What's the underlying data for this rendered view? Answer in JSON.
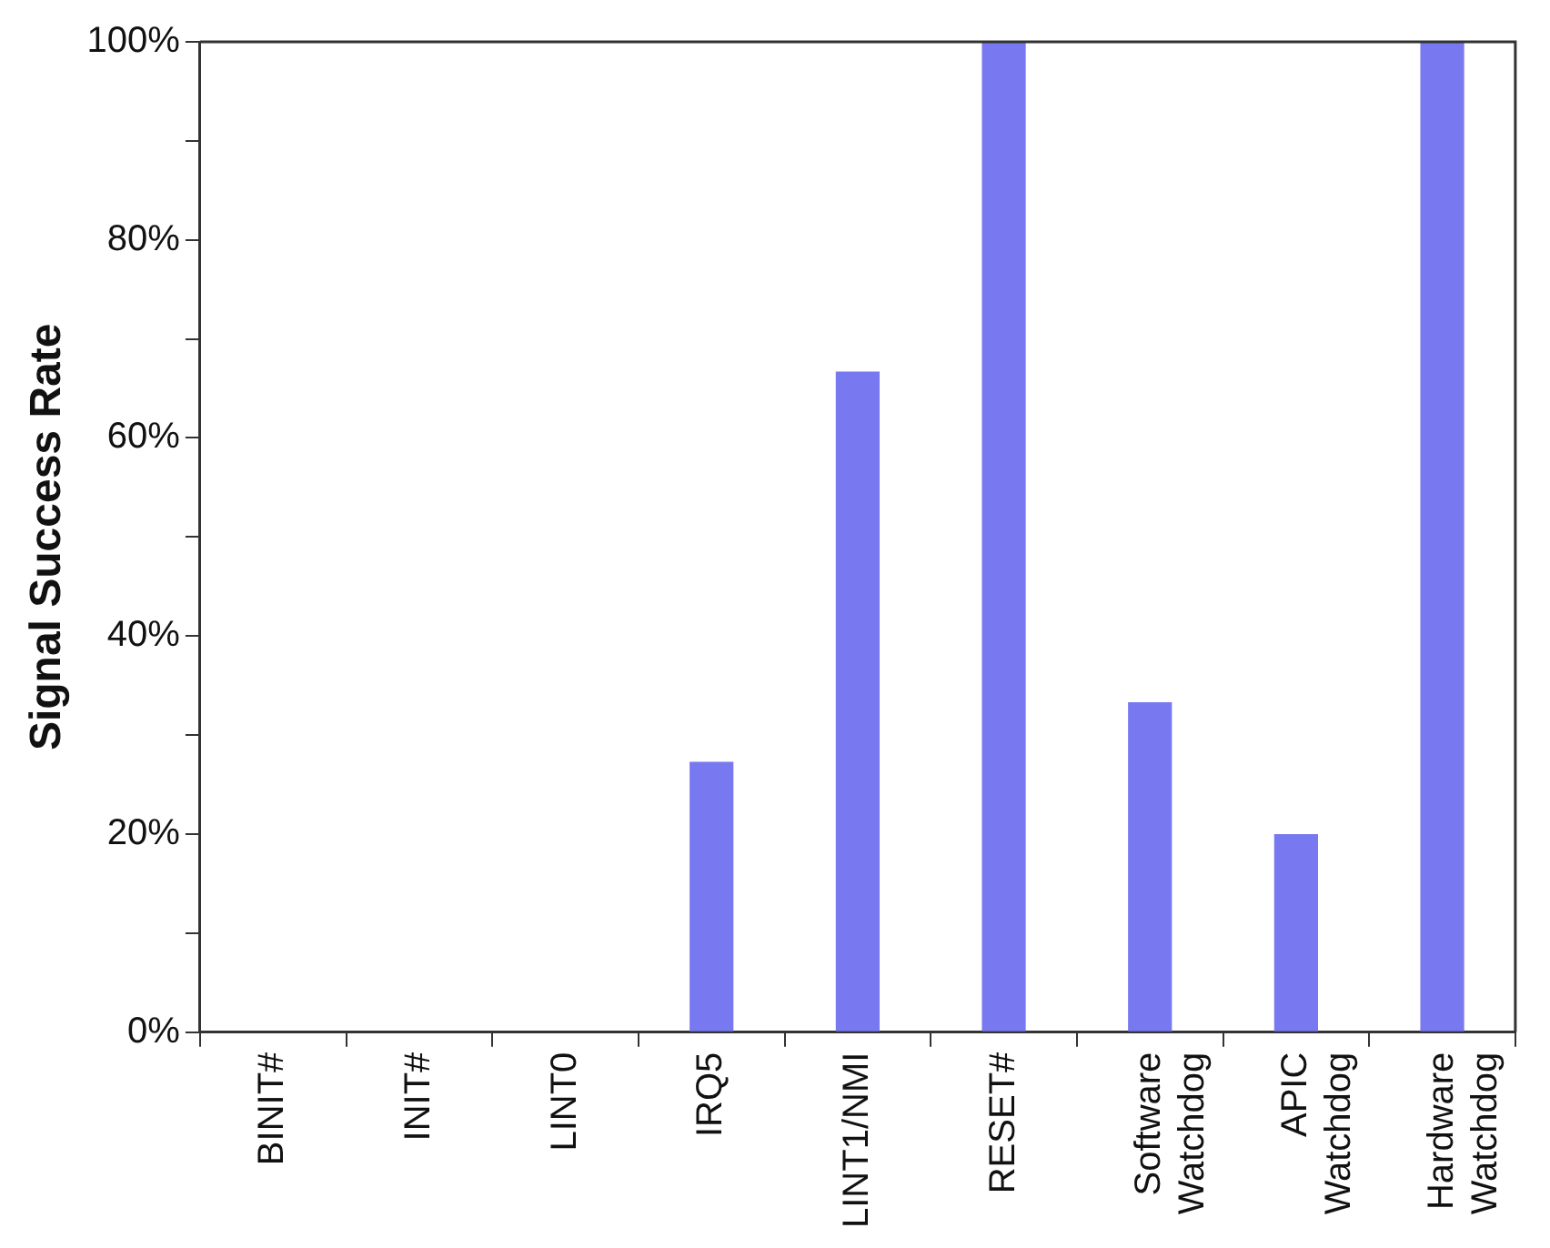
{
  "chart_data": {
    "type": "bar",
    "ylabel": "Signal Success Rate",
    "categories": [
      "BINIT#",
      "INIT#",
      "LINT0",
      "IRQ5",
      "LINT1/NMI",
      "RESET#",
      "Software Watchdog",
      "APIC Watchdog",
      "Hardware Watchdog"
    ],
    "values": [
      0,
      0,
      0,
      27.3,
      66.7,
      100,
      33.3,
      20,
      100
    ],
    "color": "#7878f0",
    "ylim": [
      0,
      100
    ],
    "yticks": [
      {
        "value": 0,
        "label": "0%"
      },
      {
        "value": 10,
        "label": null
      },
      {
        "value": 20,
        "label": "20%"
      },
      {
        "value": 30,
        "label": null
      },
      {
        "value": 40,
        "label": "40%"
      },
      {
        "value": 50,
        "label": null
      },
      {
        "value": 60,
        "label": "60%"
      },
      {
        "value": 70,
        "label": null
      },
      {
        "value": 80,
        "label": "80%"
      },
      {
        "value": 90,
        "label": null
      },
      {
        "value": 100,
        "label": "100%"
      }
    ],
    "grid": false,
    "legend": false
  }
}
